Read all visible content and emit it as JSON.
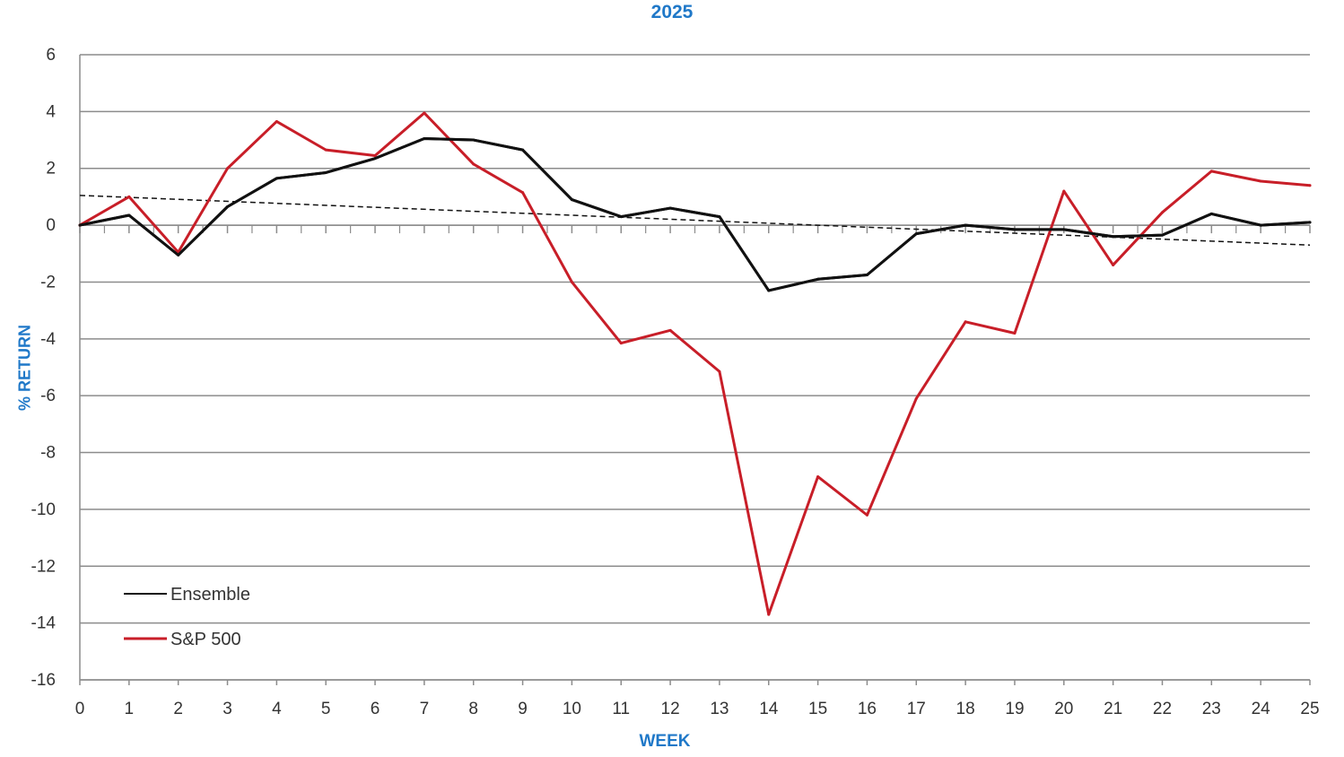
{
  "chart_data": {
    "type": "line",
    "title": "2025",
    "xlabel": "WEEK",
    "ylabel": "% RETURN",
    "xlim": [
      0,
      25
    ],
    "ylim": [
      -16,
      6
    ],
    "x_ticks": [
      0,
      1,
      2,
      3,
      4,
      5,
      6,
      7,
      8,
      9,
      10,
      11,
      12,
      13,
      14,
      15,
      16,
      17,
      18,
      19,
      20,
      21,
      22,
      23,
      24,
      25
    ],
    "y_ticks": [
      6,
      4,
      2,
      0,
      -2,
      -4,
      -6,
      -8,
      -10,
      -12,
      -14,
      -16
    ],
    "grid": true,
    "legend_position": "bottom-left",
    "x": [
      0,
      1,
      2,
      3,
      4,
      5,
      6,
      7,
      8,
      9,
      10,
      11,
      12,
      13,
      14,
      15,
      16,
      17,
      18,
      19,
      20,
      21,
      22,
      23,
      24,
      25
    ],
    "series": [
      {
        "name": "Ensemble",
        "color": "#111111",
        "values": [
          0,
          0.35,
          -1.05,
          0.65,
          1.65,
          1.85,
          2.35,
          3.05,
          3.0,
          2.65,
          0.9,
          0.3,
          0.6,
          0.3,
          -2.3,
          -1.9,
          -1.75,
          -0.3,
          0.0,
          -0.15,
          -0.15,
          -0.4,
          -0.35,
          0.4,
          0.0,
          0.1
        ]
      },
      {
        "name": "S&P 500",
        "color": "#c81e28",
        "values": [
          0,
          1.0,
          -0.95,
          2.0,
          3.65,
          2.65,
          2.45,
          3.95,
          2.15,
          1.15,
          -2.0,
          -4.15,
          -3.7,
          -5.15,
          -13.7,
          -8.85,
          -10.2,
          -6.1,
          -3.4,
          -3.8,
          1.2,
          -1.4,
          0.45,
          1.9,
          1.55,
          1.4
        ]
      }
    ],
    "trendline": {
      "style": "dashed",
      "color": "#111111",
      "values": [
        1.05,
        -0.7
      ]
    }
  }
}
